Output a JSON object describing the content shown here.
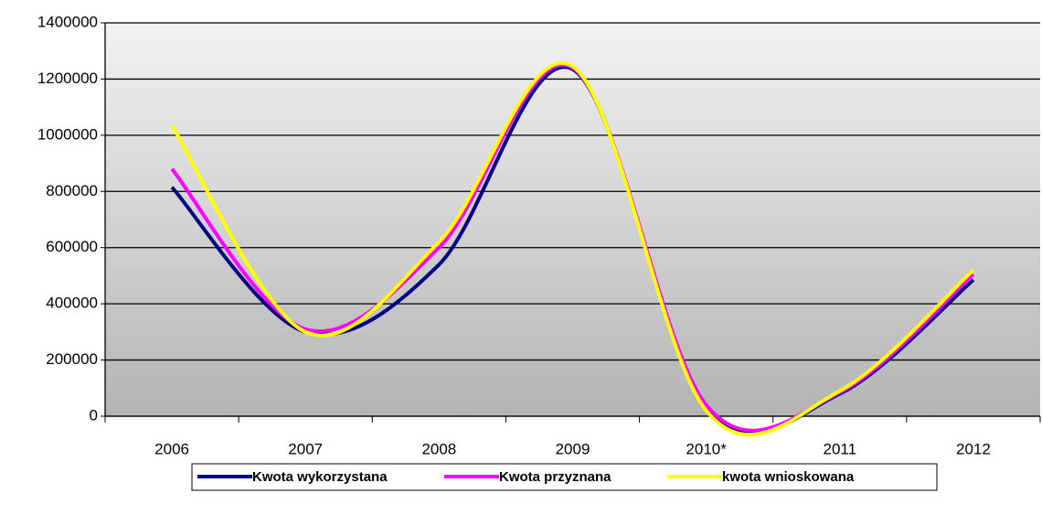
{
  "chart_data": {
    "type": "line",
    "categories": [
      "2006",
      "2007",
      "2008",
      "2009",
      "2010*",
      "2011",
      "2012"
    ],
    "series": [
      {
        "name": "Kwota wykorzystana",
        "color": "#000080",
        "values": [
          815000,
          300000,
          540000,
          1235000,
          30000,
          80000,
          485000
        ]
      },
      {
        "name": "Kwota przyznana",
        "color": "#ff00ff",
        "values": [
          880000,
          310000,
          600000,
          1240000,
          40000,
          85000,
          505000
        ]
      },
      {
        "name": "kwota wnioskowana",
        "color": "#ffff00",
        "values": [
          1035000,
          300000,
          620000,
          1245000,
          20000,
          90000,
          520000
        ]
      }
    ],
    "ylim": [
      0,
      1400000
    ],
    "yticks": [
      0,
      200000,
      400000,
      600000,
      800000,
      1000000,
      1200000,
      1400000
    ],
    "grid": true,
    "smooth": true,
    "legend": "bottom"
  }
}
